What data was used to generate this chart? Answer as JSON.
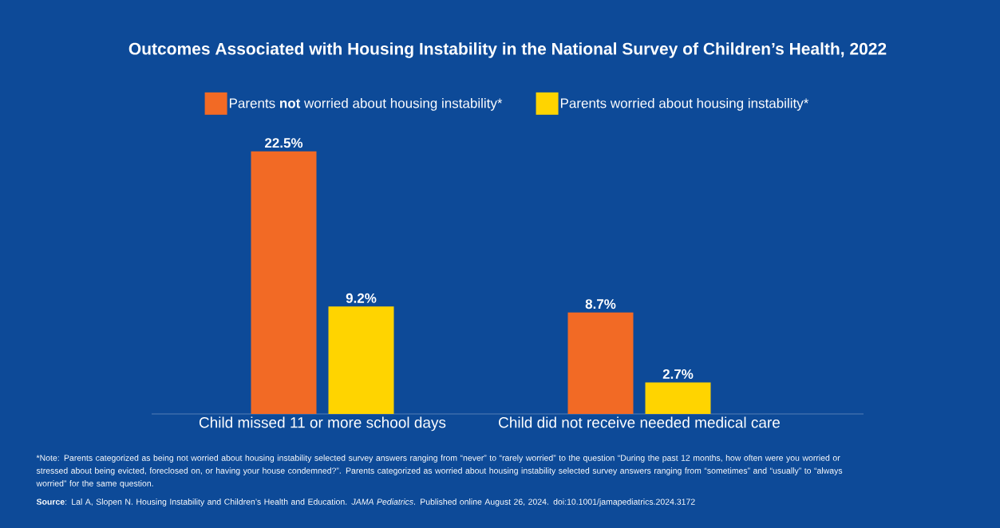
{
  "chart_data": {
    "type": "bar",
    "title": "Outcomes Associated with Housing Instability in the National Survey of Children’s Health, 2022",
    "categories": [
      "Child missed 11 or more school days",
      "Child did not receive needed medical care"
    ],
    "series": [
      {
        "name": "Parents **not** worried about housing instability*",
        "color": "#f26a25",
        "values": [
          22.5,
          8.7
        ],
        "value_labels": [
          "22.5%",
          "8.7%"
        ]
      },
      {
        "name": "Parents worried about housing instability*",
        "color": "#ffd400",
        "values": [
          9.2,
          2.7
        ],
        "value_labels": [
          "9.2%",
          "2.7%"
        ]
      }
    ],
    "legend": "top",
    "annotations": [
      "*Note: Parents categorized as being not worried about housing instability selected survey answers ranging from “never” to “rarely worried” to the question “During the past 12 months, how often were you worried or stressed about being evicted, foreclosed on, or having your house condemned?”. Parents categorized as worried about housing instability selected survey answers ranging from “sometimes” and “usually” to “always worried” for the same question.",
      "**Source**: Lal A, Slopen N. Housing Instability and Children’s Health and Education. *JAMA Pediatrics*. Published online August 26, 2024. doi:10.1001/jamapediatrics.2024.3172"
    ]
  }
}
